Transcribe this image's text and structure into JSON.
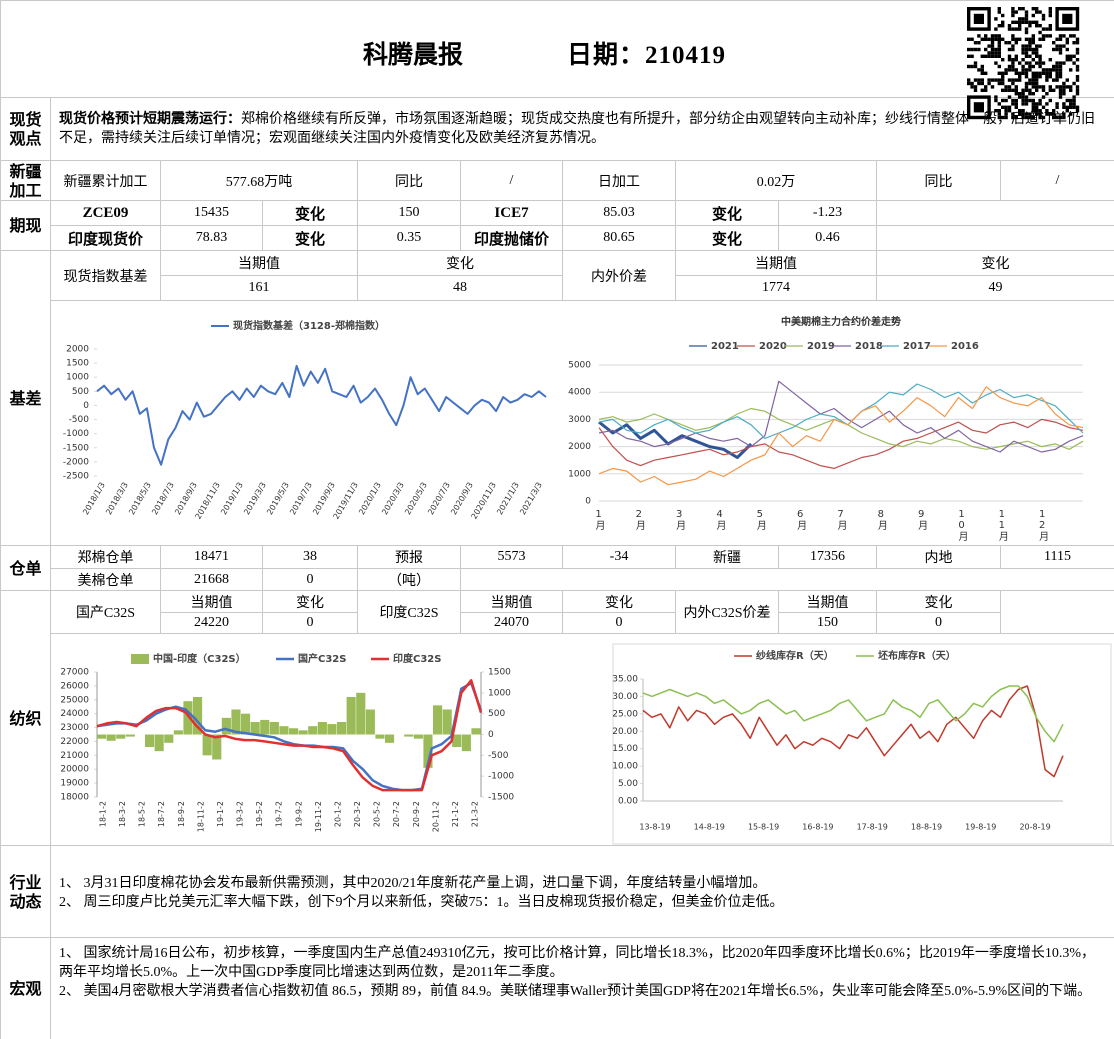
{
  "header": {
    "title": "科腾晨报",
    "date": "日期：210419"
  },
  "spot_view": {
    "label": "现货观点",
    "heading": "现货价格预计短期震荡运行：",
    "text": "郑棉价格继续有所反弹，市场氛围逐渐趋暖；现货成交热度也有所提升，部分纺企由观望转向主动补库；纱线行情整体一般，后道订单仍旧不足，需持续关注后续订单情况；宏观面继续关注国内外疫情变化及欧美经济复苏情况。"
  },
  "xinjiang": {
    "label": "新疆加工",
    "cells": [
      "新疆累计加工",
      "577.68万吨",
      "同比",
      "/",
      "日加工",
      "0.02万",
      "同比",
      "/"
    ]
  },
  "futures": {
    "label": "期现",
    "rows": [
      [
        "ZCE09",
        "15435",
        "变化",
        "150",
        "ICE7",
        "85.03",
        "变化",
        "-1.23"
      ],
      [
        "印度现货价",
        "78.83",
        "变化",
        "0.35",
        "印度抛储价",
        "80.65",
        "变化",
        "0.46"
      ]
    ]
  },
  "basis": {
    "label": "基差",
    "groups": [
      {
        "name": "现货指数基差",
        "headers": [
          "当期值",
          "变化"
        ],
        "values": [
          "161",
          "48"
        ]
      },
      {
        "name": "内外价差",
        "headers": [
          "当期值",
          "变化"
        ],
        "values": [
          "1774",
          "49"
        ]
      }
    ],
    "charts": [
      {
        "type": "line",
        "grid": false,
        "ylim": [
          -2500,
          2000
        ],
        "yticks": [
          -2500,
          -2000,
          -1500,
          -1000,
          -500,
          0,
          500,
          1000,
          1500,
          2000
        ],
        "x_labels": [
          "2018/1/3",
          "2018/3/3",
          "2018/5/3",
          "2018/7/3",
          "2018/9/3",
          "2018/11/3",
          "2019/1/3",
          "2019/3/3",
          "2019/5/3",
          "2019/7/3",
          "2019/9/3",
          "2019/11/3",
          "2020/1/3",
          "2020/3/3",
          "2020/5/3",
          "2020/7/3",
          "2020/9/3",
          "2020/11/3",
          "2021/1/3",
          "2021/3/3"
        ],
        "series": [
          {
            "name": "现货指数基差（3128-郑棉指数）",
            "color": "#4472c4",
            "values": [
              500,
              700,
              400,
              600,
              200,
              500,
              -300,
              -100,
              -1500,
              -2100,
              -1200,
              -800,
              -200,
              -500,
              100,
              -400,
              -300,
              0,
              300,
              500,
              200,
              600,
              300,
              700,
              500,
              400,
              800,
              300,
              1400,
              700,
              1200,
              800,
              1300,
              500,
              400,
              300,
              700,
              100,
              300,
              600,
              200,
              -300,
              -700,
              0,
              1000,
              400,
              600,
              200,
              -200,
              300,
              100,
              -100,
              -300,
              0,
              200,
              100,
              -200,
              300,
              100,
              200,
              400,
              300,
              500,
              300
            ]
          }
        ]
      },
      {
        "type": "line",
        "grid": true,
        "title": "中美期棉主力合约价差走势",
        "ylim": [
          0,
          5000
        ],
        "yticks": [
          0,
          1000,
          2000,
          3000,
          4000,
          5000
        ],
        "x_labels": [
          "1月",
          "2月",
          "3月",
          "4月",
          "5月",
          "6月",
          "7月",
          "8月",
          "9月",
          "10月",
          "11月",
          "12月"
        ],
        "series": [
          {
            "name": "2021",
            "color": "#2f5597",
            "values": [
              2900,
              2500,
              2800,
              2300,
              2600,
              2100,
              2400,
              2200,
              2000,
              1900,
              1600,
              2100,
              null,
              null,
              null,
              null,
              null,
              null,
              null,
              null,
              null,
              null,
              null,
              null,
              null,
              null,
              null,
              null,
              null,
              null,
              null,
              null,
              null,
              null,
              null,
              null
            ]
          },
          {
            "name": "2020",
            "color": "#c0504d",
            "values": [
              2700,
              2000,
              1500,
              1300,
              1500,
              1600,
              1700,
              1800,
              1900,
              1700,
              1800,
              2000,
              2100,
              1800,
              1700,
              1500,
              1300,
              1200,
              1400,
              1600,
              1700,
              1900,
              2200,
              2300,
              2500,
              2700,
              2900,
              2600,
              2500,
              2800,
              2900,
              2700,
              3000,
              2900,
              2700,
              2600
            ]
          },
          {
            "name": "2019",
            "color": "#9bbb59",
            "values": [
              3000,
              3100,
              2900,
              3000,
              3200,
              3000,
              2800,
              2600,
              2700,
              2900,
              3200,
              3400,
              3300,
              3000,
              2800,
              2600,
              2800,
              3000,
              2800,
              2500,
              2300,
              2100,
              2000,
              2200,
              2100,
              2300,
              2200,
              2000,
              1900,
              2000,
              2100,
              2200,
              2000,
              2100,
              1900,
              2200
            ]
          },
          {
            "name": "2018",
            "color": "#8064a2",
            "values": [
              2500,
              2600,
              2300,
              2200,
              2000,
              2100,
              2300,
              2500,
              2300,
              2200,
              2300,
              2000,
              2400,
              4400,
              4000,
              3600,
              3200,
              3400,
              3000,
              2700,
              3000,
              3300,
              2800,
              2500,
              2700,
              2300,
              2600,
              2200,
              2000,
              1800,
              2200,
              2000,
              1800,
              1900,
              2200,
              2400
            ]
          },
          {
            "name": "2017",
            "color": "#4bacc6",
            "values": [
              2900,
              3000,
              2600,
              2500,
              2800,
              3000,
              2700,
              2500,
              2600,
              2900,
              3100,
              2800,
              2300,
              2500,
              2700,
              3000,
              3200,
              3100,
              2800,
              3300,
              3600,
              4000,
              3900,
              4300,
              4100,
              3800,
              4000,
              3600,
              3900,
              4100,
              3800,
              3900,
              3700,
              3500,
              3000,
              2500
            ]
          },
          {
            "name": "2016",
            "color": "#f79646",
            "values": [
              1000,
              1200,
              1100,
              700,
              900,
              600,
              700,
              800,
              1100,
              900,
              1200,
              1500,
              1700,
              2500,
              2000,
              2400,
              2200,
              3000,
              2800,
              3300,
              3500,
              2900,
              3300,
              3800,
              3500,
              3100,
              3800,
              3400,
              4200,
              3800,
              3600,
              3500,
              3800,
              3200,
              2800,
              2700
            ]
          }
        ]
      }
    ]
  },
  "warehouse": {
    "label": "仓单",
    "rows": [
      [
        "郑棉仓单",
        "18471",
        "38",
        "预报",
        "5573",
        "-34",
        "新疆",
        "17356",
        "内地",
        "1115"
      ],
      [
        "美棉仓单",
        "21668",
        "0",
        "（吨）"
      ]
    ]
  },
  "textile": {
    "label": "纺织",
    "groups": [
      {
        "name": "国产C32S",
        "headers": [
          "当期值",
          "变化"
        ],
        "values": [
          "24220",
          "0"
        ]
      },
      {
        "name": "印度C32S",
        "headers": [
          "当期值",
          "变化"
        ],
        "values": [
          "24070",
          "0"
        ]
      },
      {
        "name": "内外C32S价差",
        "headers": [
          "当期值",
          "变化"
        ],
        "values": [
          "150",
          "0"
        ]
      }
    ],
    "charts": [
      {
        "type": "bar_line",
        "ylim": [
          18000,
          27000
        ],
        "yticks": [
          18000,
          19000,
          20000,
          21000,
          22000,
          23000,
          24000,
          25000,
          26000,
          27000
        ],
        "y2lim": [
          -1500,
          1500
        ],
        "y2ticks": [
          -1500,
          -1000,
          -500,
          0,
          500,
          1000,
          1500
        ],
        "x_labels": [
          "18-1-2",
          "18-3-2",
          "18-5-2",
          "18-7-2",
          "18-9-2",
          "18-11-2",
          "19-1-2",
          "19-3-2",
          "19-5-2",
          "19-7-2",
          "19-9-2",
          "19-11-2",
          "20-1-2",
          "20-3-2",
          "20-5-2",
          "20-7-2",
          "20-9-2",
          "20-11-2",
          "21-1-2",
          "21-3-2"
        ],
        "series": [
          {
            "name": "中国-印度（C32S）",
            "color": "#9bbb59",
            "axis": "y2",
            "kind": "bar",
            "values": [
              -100,
              -150,
              -100,
              -50,
              0,
              -300,
              -400,
              -200,
              100,
              800,
              900,
              -500,
              -600,
              400,
              600,
              500,
              300,
              350,
              300,
              200,
              150,
              100,
              200,
              300,
              250,
              300,
              900,
              1000,
              600,
              -100,
              -200,
              0,
              -50,
              -100,
              -800,
              700,
              600,
              -300,
              -400,
              150
            ]
          },
          {
            "name": "国产C32S",
            "color": "#4472c4",
            "kind": "line",
            "values": [
              23100,
              23200,
              23300,
              23300,
              23200,
              23500,
              24000,
              24300,
              24500,
              24300,
              23600,
              22800,
              22700,
              22900,
              22700,
              22600,
              22500,
              22400,
              22300,
              22000,
              21800,
              21700,
              21700,
              21600,
              21600,
              21500,
              20600,
              20000,
              19200,
              18800,
              18600,
              18500,
              18500,
              18600,
              21500,
              21800,
              22400,
              25800,
              26200,
              24220
            ]
          },
          {
            "name": "印度C32S",
            "color": "#e03030",
            "kind": "line",
            "values": [
              23100,
              23300,
              23400,
              23300,
              23100,
              23700,
              24200,
              24400,
              24400,
              24100,
              23200,
              22500,
              22300,
              22400,
              22200,
              22100,
              22100,
              22000,
              21900,
              21800,
              21700,
              21700,
              21600,
              21600,
              21500,
              21300,
              20300,
              19400,
              18800,
              18500,
              18500,
              18500,
              18500,
              18500,
              21000,
              21300,
              22000,
              25500,
              26400,
              24070
            ]
          }
        ]
      },
      {
        "type": "line",
        "grid": false,
        "ylim": [
          0,
          35
        ],
        "yticks": [
          {
            "value": 0,
            "label": "0.00"
          },
          {
            "value": 5,
            "label": "5.00"
          },
          {
            "value": 10,
            "label": "10.00"
          },
          {
            "value": 15,
            "label": "15.00"
          },
          {
            "value": 20,
            "label": "20.00"
          },
          {
            "value": 25,
            "label": "25.00"
          },
          {
            "value": 30,
            "label": "30.00"
          },
          {
            "value": 35,
            "label": "35.00"
          }
        ],
        "x_labels": [
          "13-8-19",
          "14-8-19",
          "15-8-19",
          "16-8-19",
          "17-8-19",
          "18-8-19",
          "19-8-19",
          "20-8-19"
        ],
        "series": [
          {
            "name": "纱线库存R（天）",
            "color": "#c0392b",
            "values": [
              26,
              24,
              25,
              21,
              27,
              23,
              26,
              25,
              22,
              24,
              25,
              22,
              18,
              24,
              20,
              16,
              19,
              15,
              17,
              16,
              18,
              17,
              15,
              19,
              18,
              21,
              17,
              13,
              16,
              19,
              22,
              18,
              20,
              17,
              22,
              24,
              21,
              18,
              23,
              26,
              24,
              29,
              32,
              33,
              24,
              9,
              7,
              13
            ]
          },
          {
            "name": "坯布库存R（天）",
            "color": "#8cc152",
            "values": [
              31,
              30,
              31,
              32,
              31,
              30,
              31,
              30,
              28,
              29,
              27,
              25,
              26,
              28,
              29,
              27,
              25,
              26,
              23,
              24,
              25,
              26,
              28,
              29,
              26,
              23,
              24,
              25,
              29,
              27,
              26,
              24,
              28,
              29,
              26,
              23,
              25,
              28,
              27,
              30,
              32,
              33,
              33,
              30,
              24,
              20,
              17,
              22
            ]
          }
        ]
      }
    ]
  },
  "industry": {
    "label": "行业动态",
    "items": [
      "1、  3月31日印度棉花协会发布最新供需预测，其中2020/21年度新花产量上调，进口量下调，年度结转量小幅增加。",
      "2、  周三印度卢比兑美元汇率大幅下跌，创下9个月以来新低，突破75：1。当日皮棉现货报价稳定，但美金价位走低。"
    ]
  },
  "macro": {
    "label": "宏观",
    "items": [
      "1、  国家统计局16日公布，初步核算，一季度国内生产总值249310亿元，按可比价格计算，同比增长18.3%，比2020年四季度环比增长0.6%；比2019年一季度增长10.3%，两年平均增长5.0%。上一次中国GDP季度同比增速达到两位数，是2011年二季度。",
      "2、  美国4月密歇根大学消费者信心指数初值 86.5，预期 89，前值 84.9。美联储理事Waller预计美国GDP将在2021年增长6.5%，失业率可能会降至5.0%-5.9%区间的下端。"
    ]
  }
}
